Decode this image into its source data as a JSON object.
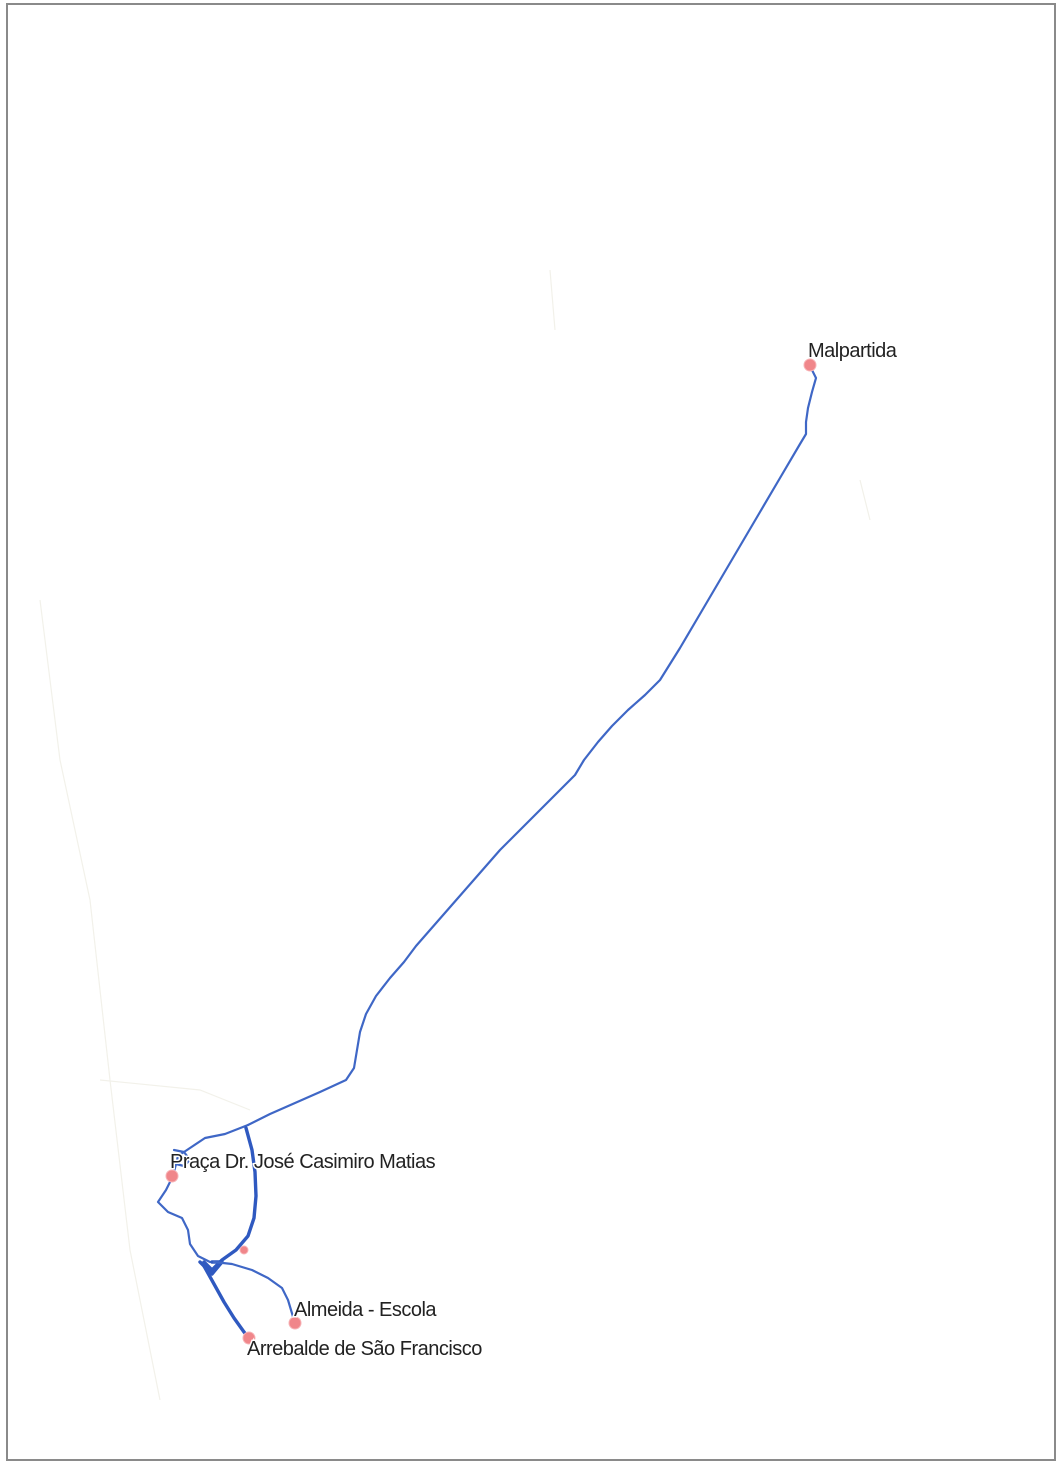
{
  "map": {
    "colors": {
      "route": "#3f67c6",
      "route_bold": "#2f59c0",
      "stop": "#f0868a",
      "frame": "#8a8a8a",
      "background": "#ffffff"
    },
    "stops": [
      {
        "id": "malpartida",
        "name": "Malpartida"
      },
      {
        "id": "praca",
        "name": "Praça Dr. José Casimiro Matias"
      },
      {
        "id": "almeida-escola",
        "name": "Almeida - Escola"
      },
      {
        "id": "arrebalde",
        "name": "Arrebalde de São Francisco"
      },
      {
        "id": "unlabeled",
        "name": ""
      }
    ],
    "icons": {
      "stop_marker": "circle-marker-icon"
    }
  }
}
